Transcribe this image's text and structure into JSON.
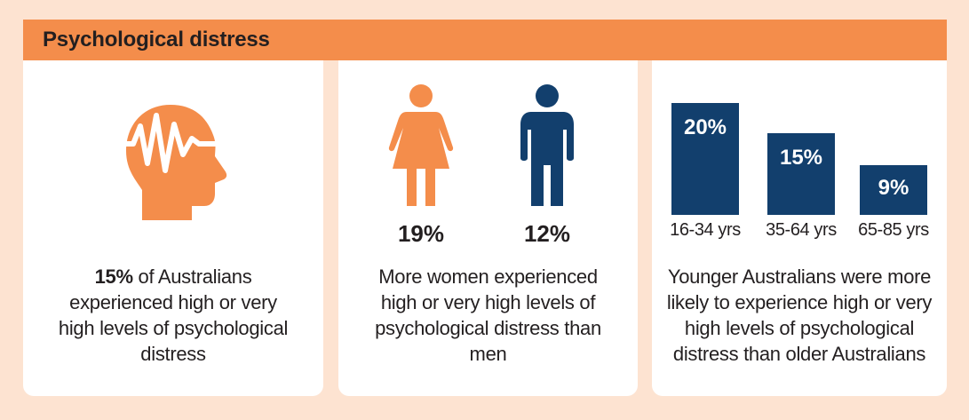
{
  "header": {
    "title": "Psychological distress"
  },
  "colors": {
    "accent": "#f48d4b",
    "navy": "#123f6d",
    "background": "#fde3d1"
  },
  "panel1": {
    "icon": "head-brainwave-icon",
    "stat": "15%",
    "text": "of Australians experienced high or very high levels of psychological distress"
  },
  "panel2": {
    "women_icon": "woman-icon",
    "men_icon": "man-icon",
    "women_pct": "19%",
    "men_pct": "12%",
    "text": "More women experienced high or very high levels of psychological distress than men"
  },
  "panel3": {
    "bars": [
      {
        "label": "20%",
        "category": "16-34 yrs",
        "value": 20
      },
      {
        "label": "15%",
        "category": "35-64 yrs",
        "value": 15
      },
      {
        "label": "9%",
        "category": "65-85 yrs",
        "value": 9
      }
    ],
    "text": "Younger Australians were more likely to experience high or very high levels of psychological distress than older Australians"
  }
}
